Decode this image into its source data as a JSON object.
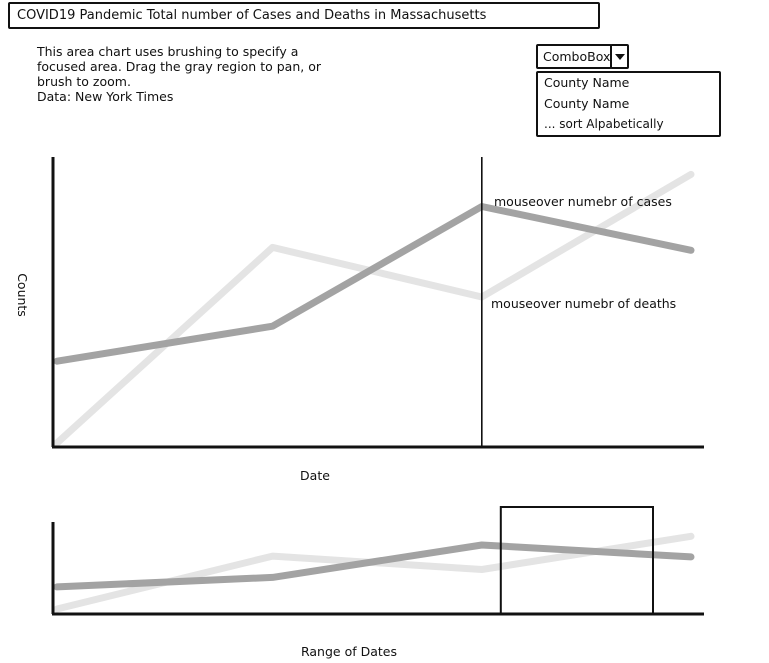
{
  "title": "COVID19 Pandemic Total number of Cases and Deaths in Massachusetts",
  "description": [
    "This area chart uses brushing to specify a",
    "focused area. Drag the gray region to pan, or",
    "brush to zoom.",
    "Data: New York Times"
  ],
  "combobox": {
    "label": "ComboBox",
    "options": [
      "County Name",
      "County Name",
      "... sort Alpabetically"
    ]
  },
  "chart_data": [
    {
      "type": "line",
      "title": "",
      "xlabel": "Date",
      "ylabel": "Counts",
      "annotations": [
        "mouseover numebr of cases",
        "mouseover numebr of deaths"
      ],
      "series": [
        {
          "values": [
            0.28,
            0.4,
            0.81,
            0.66
          ],
          "color": "#a3a3a3"
        },
        {
          "values": [
            0.0,
            0.67,
            0.5,
            0.92
          ],
          "color": "#e4e4e4"
        }
      ],
      "x": [
        0,
        0.34,
        0.67,
        1.0
      ],
      "mouseover_x": 0.67,
      "legend": "none",
      "grid": false
    },
    {
      "type": "line",
      "title": "",
      "xlabel": "Range of Dates",
      "ylabel": "",
      "series": [
        {
          "values": [
            0.28,
            0.4,
            0.81,
            0.66
          ],
          "color": "#a3a3a3"
        },
        {
          "values": [
            0.0,
            0.67,
            0.5,
            0.92
          ],
          "color": "#e4e4e4"
        }
      ],
      "x": [
        0,
        0.34,
        0.67,
        1.0
      ],
      "brush_range": [
        0.7,
        0.94
      ],
      "legend": "none",
      "grid": false
    }
  ]
}
